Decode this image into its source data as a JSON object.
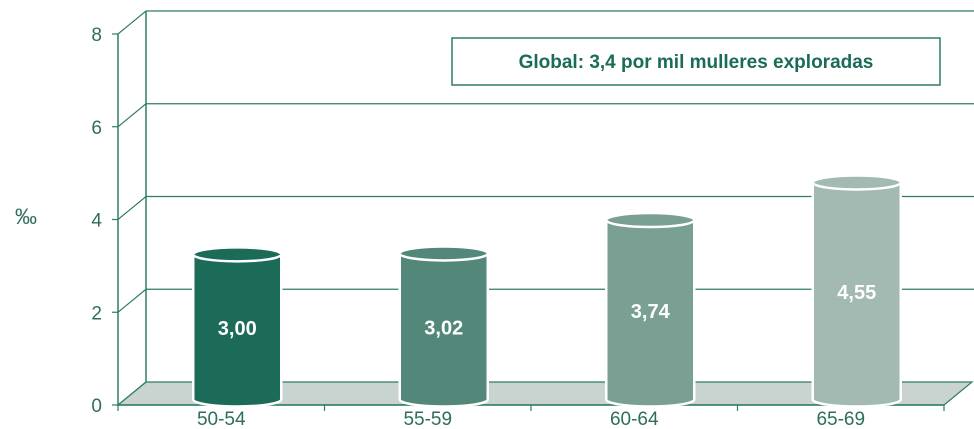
{
  "chart_data": {
    "type": "bar",
    "categories": [
      "50-54",
      "55-59",
      "60-64",
      "65-69"
    ],
    "values": [
      3.0,
      3.02,
      3.74,
      4.55
    ],
    "value_labels": [
      "3,00",
      "3,02",
      "3,74",
      "4,55"
    ],
    "ylabel": "‰",
    "ylim": [
      0,
      8
    ],
    "yticks": [
      "0",
      "2",
      "4",
      "6",
      "8"
    ],
    "grid": true,
    "annotation": "Global: 3,4 por mil mulleres exploradas",
    "colors": {
      "bars": [
        "#1c6b58",
        "#53877a",
        "#79a093",
        "#a2bab2"
      ],
      "grid": "#2e7d68",
      "text": "#2e6e5d",
      "floor": "#c9d3cf"
    }
  }
}
